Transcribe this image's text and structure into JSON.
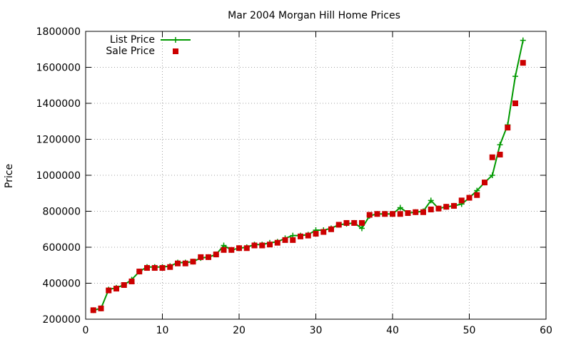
{
  "chart_data": {
    "type": "line",
    "title": "Mar 2004 Morgan Hill Home Prices",
    "xlabel": "",
    "ylabel": "Price",
    "xlim": [
      0,
      60
    ],
    "ylim": [
      200000,
      1800000
    ],
    "xticks": [
      0,
      10,
      20,
      30,
      40,
      50,
      60
    ],
    "yticks": [
      200000,
      400000,
      600000,
      800000,
      1000000,
      1200000,
      1400000,
      1600000,
      1800000
    ],
    "grid": true,
    "legend_position": "top-left",
    "x": [
      1,
      2,
      3,
      4,
      5,
      6,
      7,
      8,
      9,
      10,
      11,
      12,
      13,
      14,
      15,
      16,
      17,
      18,
      19,
      20,
      21,
      22,
      23,
      24,
      25,
      26,
      27,
      28,
      29,
      30,
      31,
      32,
      33,
      34,
      35,
      36,
      37,
      38,
      39,
      40,
      41,
      42,
      43,
      44,
      45,
      46,
      47,
      48,
      49,
      50,
      51,
      52,
      53,
      54,
      55,
      56,
      57
    ],
    "series": [
      {
        "name": "List Price",
        "style": "line-plus",
        "color": "#009900",
        "values": [
          250000,
          260000,
          365000,
          375000,
          390000,
          420000,
          465000,
          490000,
          490000,
          490000,
          495000,
          515000,
          515000,
          520000,
          540000,
          545000,
          560000,
          610000,
          585000,
          595000,
          600000,
          615000,
          615000,
          625000,
          630000,
          650000,
          665000,
          665000,
          670000,
          695000,
          695000,
          705000,
          725000,
          730000,
          735000,
          705000,
          775000,
          785000,
          785000,
          785000,
          820000,
          790000,
          795000,
          800000,
          860000,
          815000,
          825000,
          830000,
          840000,
          875000,
          915000,
          960000,
          1000000,
          1170000,
          1280000,
          1550000,
          1750000
        ]
      },
      {
        "name": "Sale Price",
        "style": "square",
        "color": "#cc0000",
        "values": [
          250000,
          260000,
          360000,
          370000,
          390000,
          410000,
          465000,
          485000,
          485000,
          485000,
          490000,
          510000,
          510000,
          520000,
          545000,
          545000,
          560000,
          585000,
          585000,
          595000,
          595000,
          610000,
          610000,
          615000,
          625000,
          640000,
          640000,
          660000,
          665000,
          675000,
          685000,
          700000,
          725000,
          735000,
          735000,
          735000,
          780000,
          785000,
          785000,
          785000,
          785000,
          790000,
          795000,
          795000,
          810000,
          815000,
          825000,
          830000,
          860000,
          875000,
          890000,
          960000,
          1100000,
          1115000,
          1265000,
          1400000,
          1625000
        ]
      }
    ]
  }
}
